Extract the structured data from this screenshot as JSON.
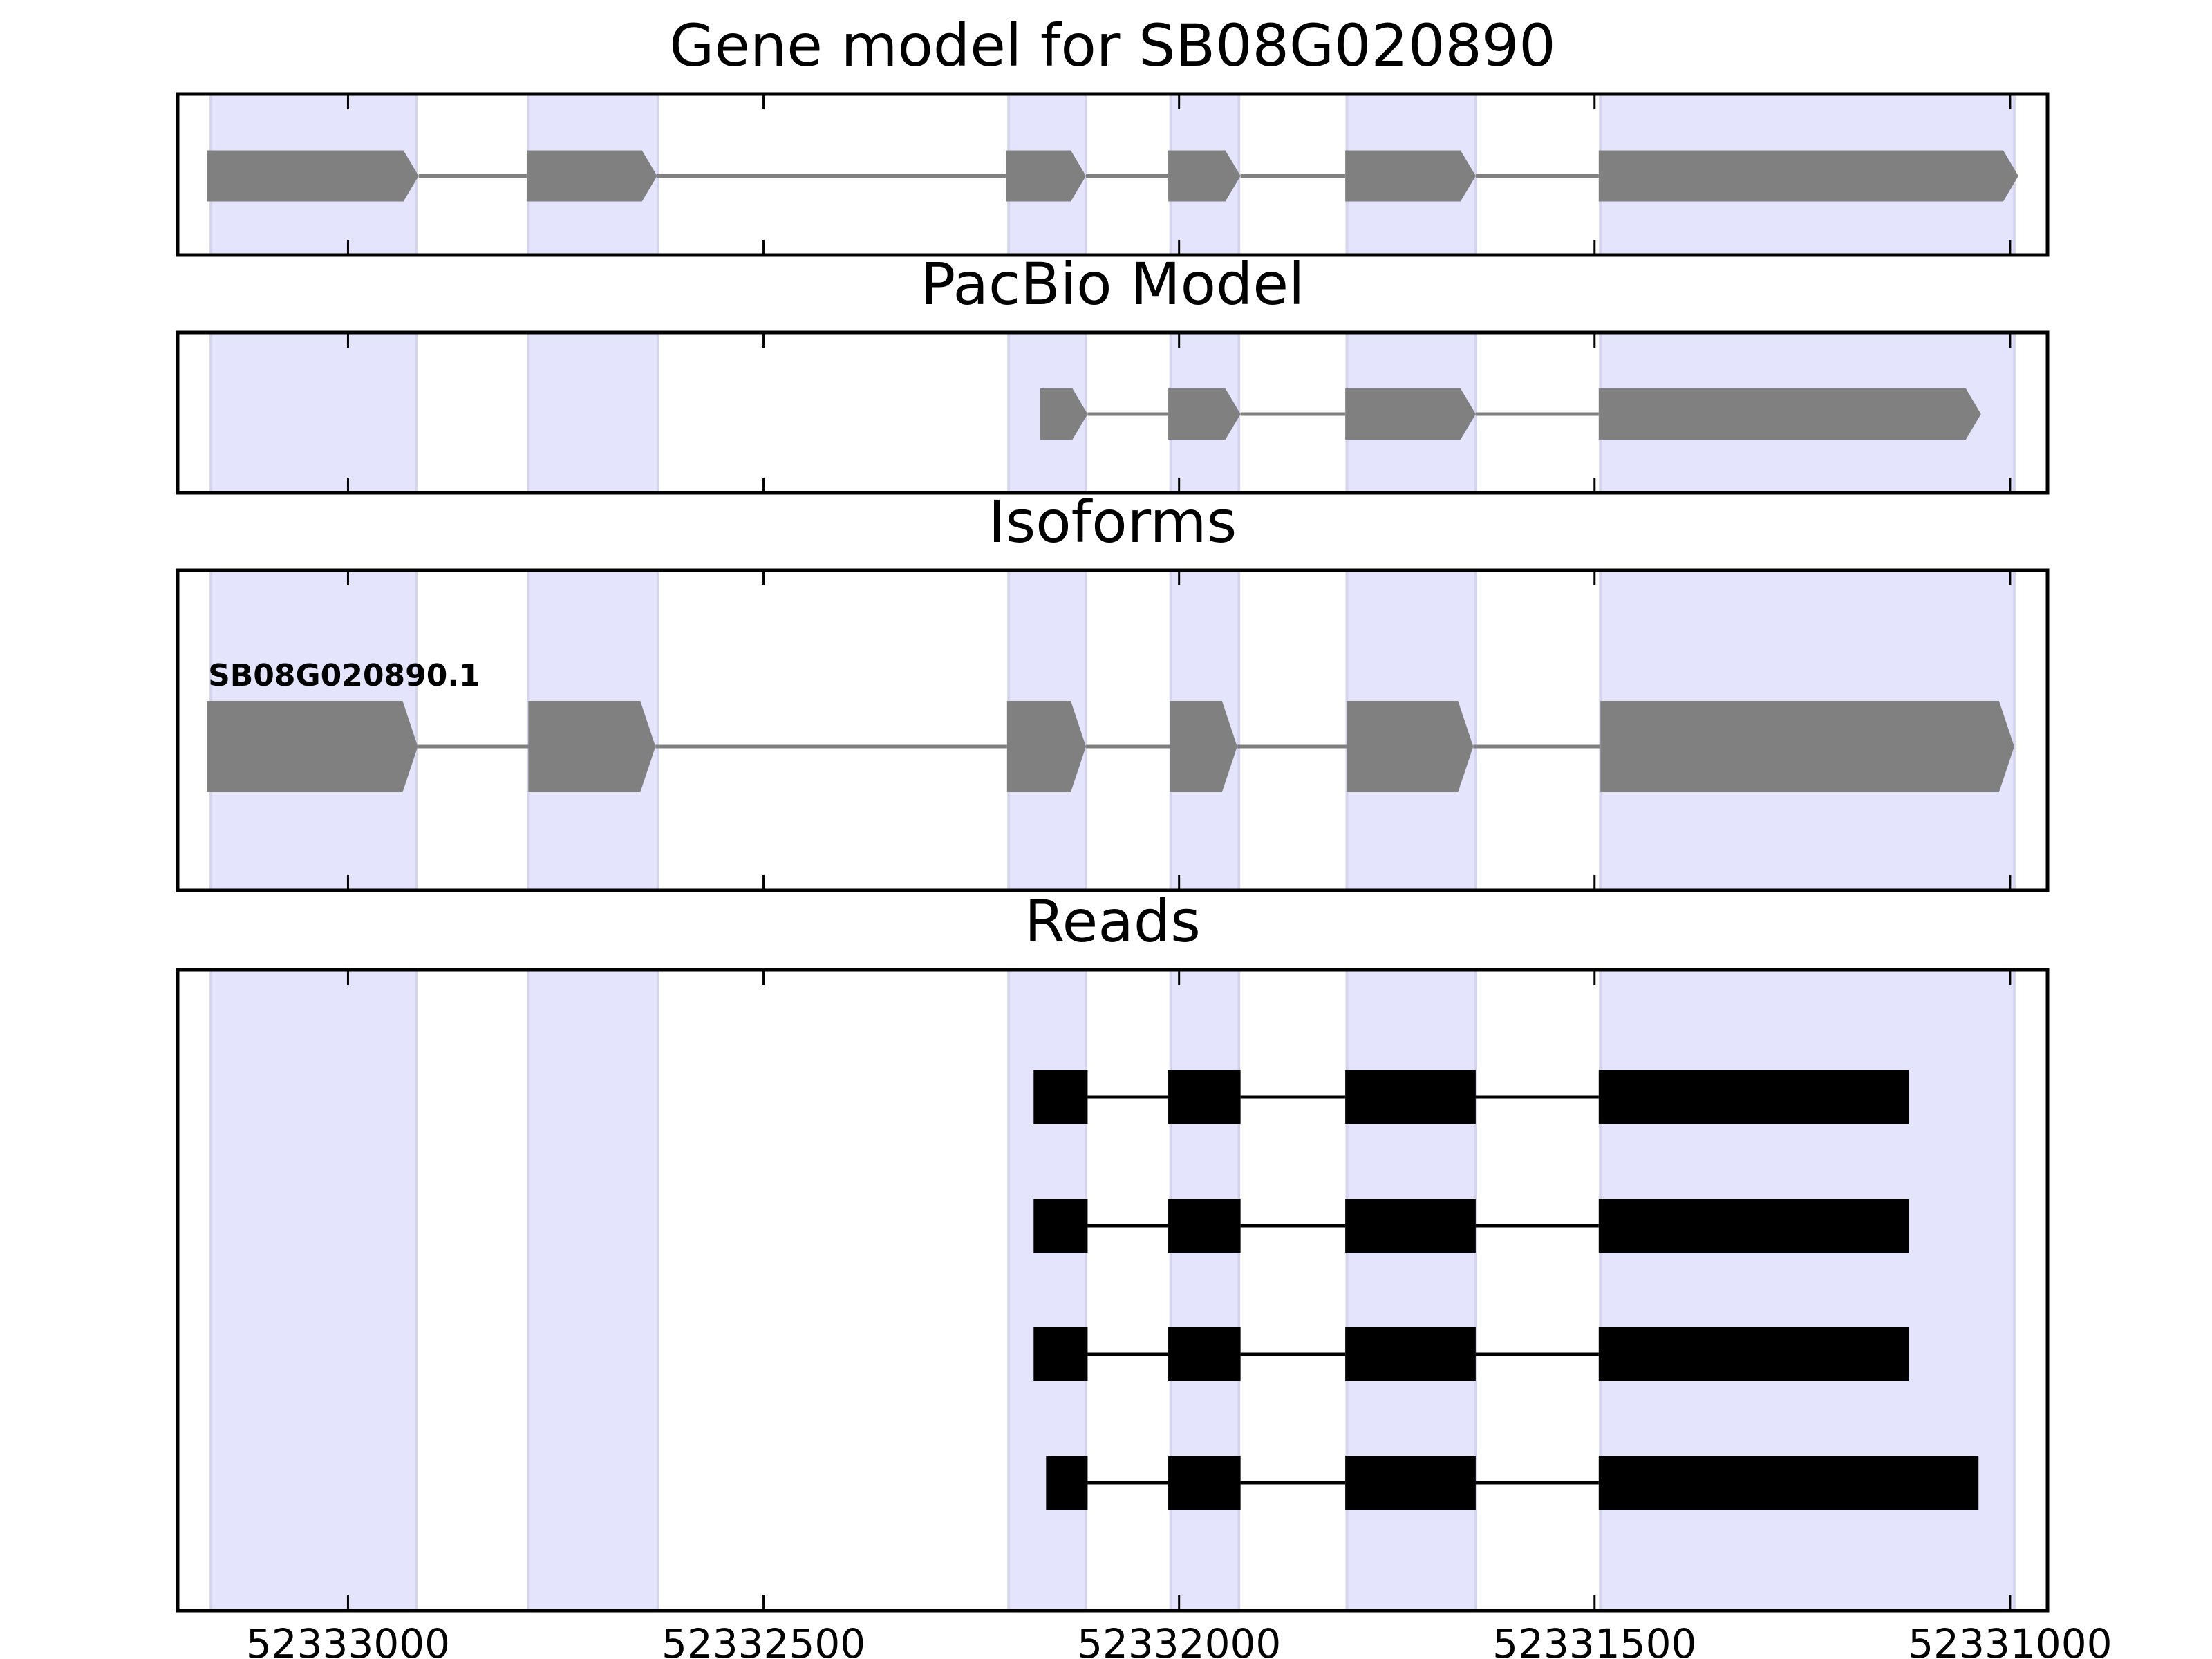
{
  "chart_data": {
    "type": "gene-track",
    "xlim": [
      52333205,
      52330955
    ],
    "x_ticks": [
      52333000,
      52332500,
      52332000,
      52331500,
      52331000
    ],
    "x_tick_labels": [
      "52333000",
      "52332500",
      "52332000",
      "52331500",
      "52331000"
    ],
    "highlight_color": "#e4e4fc",
    "feature_color": "#808080",
    "read_color": "#000000",
    "exon_regions": [
      [
        52333165,
        52332918
      ],
      [
        52332783,
        52332627
      ],
      [
        52332205,
        52332112
      ],
      [
        52332010,
        52331928
      ],
      [
        52331798,
        52331643
      ],
      [
        52331493,
        52330995
      ]
    ],
    "panels": [
      {
        "title": "Gene model for SB08G020890",
        "kind": "model",
        "tracks": [
          {
            "label": "",
            "exons": [
              [
                52333170,
                52332915
              ],
              [
                52332785,
                52332628
              ],
              [
                52332208,
                52332112
              ],
              [
                52332013,
                52331926
              ],
              [
                52331800,
                52331643
              ],
              [
                52331495,
                52330990
              ]
            ]
          }
        ]
      },
      {
        "title": "PacBio Model",
        "kind": "model",
        "tracks": [
          {
            "label": "",
            "exons": [
              [
                52332167,
                52332110
              ],
              [
                52332013,
                52331926
              ],
              [
                52331800,
                52331643
              ],
              [
                52331495,
                52331035
              ]
            ]
          }
        ]
      },
      {
        "title": "Isoforms",
        "kind": "isoform",
        "tracks": [
          {
            "label": "SB08G020890.1",
            "exons": [
              [
                52333170,
                52332916
              ],
              [
                52332783,
                52332630
              ],
              [
                52332207,
                52332112
              ],
              [
                52332011,
                52331930
              ],
              [
                52331798,
                52331646
              ],
              [
                52331493,
                52330995
              ]
            ]
          }
        ]
      },
      {
        "title": "Reads",
        "kind": "reads",
        "tracks": [
          {
            "label": "",
            "exons": [
              [
                52332175,
                52332110
              ],
              [
                52332013,
                52331926
              ],
              [
                52331800,
                52331643
              ],
              [
                52331495,
                52331122
              ]
            ]
          },
          {
            "label": "",
            "exons": [
              [
                52332175,
                52332110
              ],
              [
                52332013,
                52331926
              ],
              [
                52331800,
                52331643
              ],
              [
                52331495,
                52331122
              ]
            ]
          },
          {
            "label": "",
            "exons": [
              [
                52332175,
                52332110
              ],
              [
                52332013,
                52331926
              ],
              [
                52331800,
                52331643
              ],
              [
                52331495,
                52331122
              ]
            ]
          },
          {
            "label": "",
            "exons": [
              [
                52332160,
                52332110
              ],
              [
                52332013,
                52331926
              ],
              [
                52331800,
                52331643
              ],
              [
                52331495,
                52331038
              ]
            ]
          }
        ]
      }
    ]
  }
}
